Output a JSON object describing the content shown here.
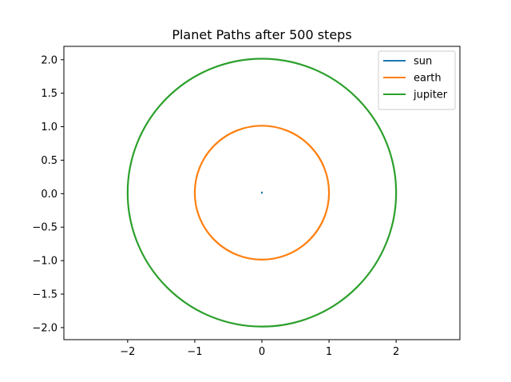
{
  "chart_data": {
    "type": "line",
    "title": "Planet Paths after 500 steps",
    "xlabel": "",
    "ylabel": "",
    "xlim": [
      -2.95,
      2.95
    ],
    "ylim": [
      -2.18,
      2.2
    ],
    "x_ticks": [
      -2,
      -1,
      0,
      1,
      2
    ],
    "x_tick_labels": [
      "−2",
      "−1",
      "0",
      "1",
      "2"
    ],
    "y_ticks": [
      -2.0,
      -1.5,
      -1.0,
      -0.5,
      0.0,
      0.5,
      1.0,
      1.5,
      2.0
    ],
    "y_tick_labels": [
      "−2.0",
      "−1.5",
      "−1.0",
      "−0.5",
      "0.0",
      "0.5",
      "1.0",
      "1.5",
      "2.0"
    ],
    "grid": false,
    "legend_position": "top-right",
    "series": [
      {
        "name": "sun",
        "color": "#1f77b4",
        "shape": "path",
        "points": [
          [
            0.0,
            0.0
          ],
          [
            0.0,
            0.005
          ],
          [
            0.0,
            0.01
          ],
          [
            0.0,
            0.015
          ],
          [
            0.0,
            0.02
          ],
          [
            0.0,
            0.025
          ],
          [
            0.0,
            0.03
          ]
        ]
      },
      {
        "name": "earth",
        "color": "#ff7f0e",
        "shape": "circle",
        "center": [
          0.0,
          0.015
        ],
        "radius": 1.0
      },
      {
        "name": "jupiter",
        "color": "#2ca02c",
        "shape": "circle",
        "center": [
          0.0,
          0.015
        ],
        "radius": 2.0
      }
    ]
  }
}
